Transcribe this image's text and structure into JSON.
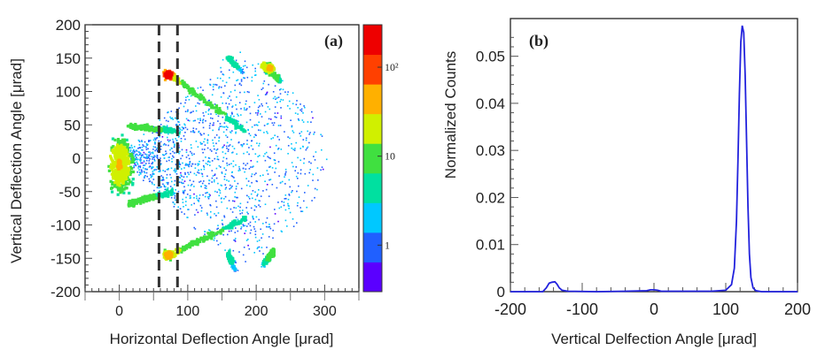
{
  "chart_data": [
    {
      "type": "heatmap",
      "panel_label": "(a)",
      "xlabel": "Horizontal Deflection Angle [μrad]",
      "ylabel": "Vertical Deflection Angle [μrad]",
      "xlim": [
        -50,
        350
      ],
      "ylim": [
        -200,
        200
      ],
      "x_ticks": [
        "0",
        "100",
        "200",
        "300"
      ],
      "y_ticks": [
        "-200",
        "-150",
        "-100",
        "-50",
        "0",
        "50",
        "100",
        "150",
        "200"
      ],
      "log_color_scale": true,
      "colorbar_labels": [
        "1",
        "10",
        "10²"
      ],
      "colorbar_label_values": [
        1,
        10,
        100
      ],
      "colorbar_range": [
        0.3,
        300
      ],
      "colormap": [
        "#5a00ff",
        "#2060ff",
        "#00c8ff",
        "#00e0a0",
        "#40e040",
        "#d0f000",
        "#ffb000",
        "#ff4000",
        "#ee0000"
      ],
      "dashed_lines_x": [
        58,
        85
      ],
      "features": [
        {
          "kind": "core",
          "x": 0,
          "y": -10,
          "peak": 30
        },
        {
          "kind": "hotspot",
          "x": 72,
          "y": 125,
          "peak": 250
        },
        {
          "kind": "hotspot",
          "x": 72,
          "y": -145,
          "peak": 60
        },
        {
          "kind": "hotspot",
          "x": 220,
          "y": 135,
          "peak": 40
        },
        {
          "kind": "streak",
          "x0": 75,
          "y0": 125,
          "x1": 185,
          "y1": 40,
          "peak": 15
        },
        {
          "kind": "streak",
          "x0": 75,
          "y0": -145,
          "x1": 185,
          "y1": -90,
          "peak": 15
        },
        {
          "kind": "streak",
          "x0": 15,
          "y0": 48,
          "x1": 90,
          "y1": 40,
          "peak": 12
        },
        {
          "kind": "streak",
          "x0": 15,
          "y0": -68,
          "x1": 80,
          "y1": -50,
          "peak": 12
        },
        {
          "kind": "streak",
          "x0": 210,
          "y0": 140,
          "x1": 235,
          "y1": 115,
          "peak": 20
        },
        {
          "kind": "streak",
          "x0": 160,
          "y0": 150,
          "x1": 180,
          "y1": 130,
          "peak": 5
        },
        {
          "kind": "streak",
          "x0": 225,
          "y0": -140,
          "x1": 210,
          "y1": -160,
          "peak": 10
        },
        {
          "kind": "streak",
          "x0": 160,
          "y0": -145,
          "x1": 170,
          "y1": -170,
          "peak": 4
        }
      ]
    },
    {
      "type": "line",
      "panel_label": "(b)",
      "xlabel": "Vertical Delfection Angle [μrad]",
      "ylabel": "Normalized Counts",
      "xlim": [
        -200,
        200
      ],
      "ylim": [
        0,
        0.058
      ],
      "x_ticks": [
        "-200",
        "-100",
        "0",
        "100",
        "200"
      ],
      "y_ticks": [
        "0",
        "0.01",
        "0.02",
        "0.03",
        "0.04",
        "0.05"
      ],
      "color": "#2222dd",
      "series": [
        {
          "x": [
            -200,
            -155,
            -150,
            -146,
            -142,
            -138,
            -135,
            -132,
            -128,
            -120,
            -80,
            -40,
            -10,
            -5,
            0,
            5,
            10,
            40,
            80,
            100,
            108,
            112,
            115,
            117,
            119,
            121,
            123,
            125,
            127,
            129,
            131,
            133,
            135,
            138,
            142,
            150,
            200
          ],
          "y": [
            0,
            0,
            0.0008,
            0.0018,
            0.002,
            0.0021,
            0.0016,
            0.0008,
            0.0003,
            0.0001,
            0,
            0.0001,
            0.0002,
            0.0004,
            0.0004,
            0.0003,
            0.0001,
            0.0001,
            0.0001,
            0.0003,
            0.0015,
            0.005,
            0.015,
            0.028,
            0.042,
            0.053,
            0.0565,
            0.055,
            0.046,
            0.032,
            0.018,
            0.008,
            0.003,
            0.0008,
            0.0002,
            0,
            0
          ]
        }
      ]
    }
  ]
}
